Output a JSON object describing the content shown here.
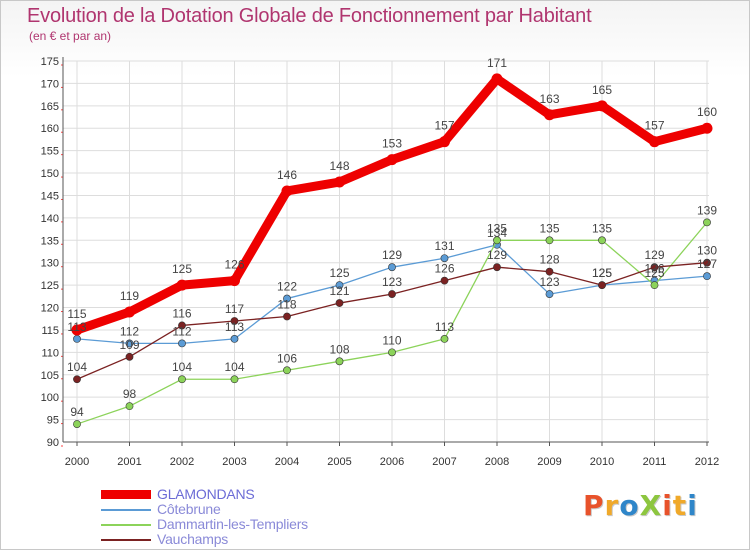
{
  "title": "Evolution de la Dotation Globale de Fonctionnement par Habitant",
  "subtitle": "(en € et par an)",
  "logo": {
    "text": "ProXiti",
    "letter_colors": [
      "#e8522b",
      "#f0a92a",
      "#2f86c9",
      "#8dc63f",
      "#e8522b",
      "#f0a92a",
      "#2f86c9"
    ]
  },
  "colors": {
    "title": "#b0356f",
    "grid": "#dddddd",
    "axis": "#555555",
    "tick_label": "#333333",
    "data_label": "#444444"
  },
  "chart_data": {
    "type": "line",
    "x": [
      "2000",
      "2001",
      "2002",
      "2003",
      "2004",
      "2005",
      "2006",
      "2007",
      "2008",
      "2009",
      "2010",
      "2011",
      "2012"
    ],
    "ylim": [
      90,
      175
    ],
    "ytick_step": 5,
    "grid": true,
    "legend_position": "bottom-left",
    "series": [
      {
        "name": "GLAMONDANS",
        "color": "#ee0000",
        "emphasis": true,
        "values": [
          115,
          119,
          125,
          126,
          146,
          148,
          153,
          157,
          171,
          163,
          165,
          157,
          160
        ]
      },
      {
        "name": "Côtebrune",
        "color": "#5b9bd5",
        "emphasis": false,
        "values": [
          113,
          112,
          112,
          113,
          122,
          125,
          129,
          131,
          134,
          123,
          125,
          126,
          127
        ]
      },
      {
        "name": "Dammartin-les-Templiers",
        "color": "#8cd35a",
        "emphasis": false,
        "values": [
          94,
          98,
          104,
          104,
          106,
          108,
          110,
          113,
          135,
          135,
          135,
          125,
          139
        ]
      },
      {
        "name": "Vauchamps",
        "color": "#7b2222",
        "emphasis": false,
        "values": [
          104,
          109,
          116,
          117,
          118,
          121,
          123,
          126,
          129,
          128,
          125,
          129,
          130
        ]
      }
    ]
  }
}
